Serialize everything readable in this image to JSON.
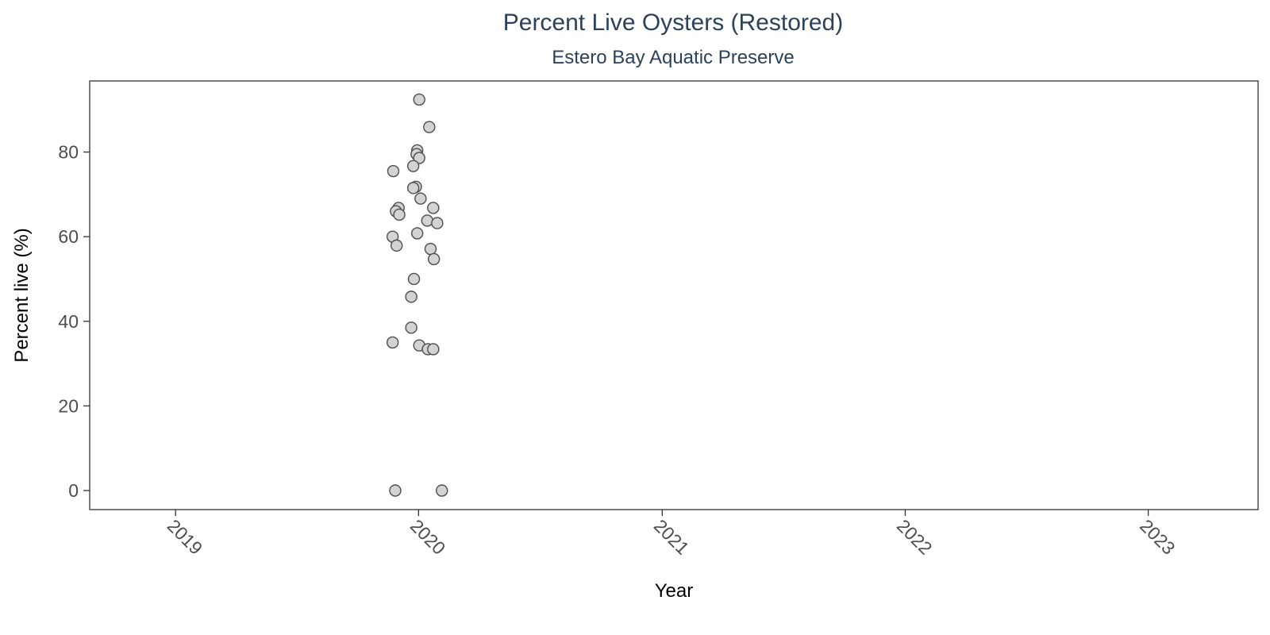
{
  "chart_data": {
    "type": "scatter",
    "title": "Percent Live Oysters (Restored)",
    "subtitle": "Estero Bay Aquatic Preserve",
    "xlabel": "Year",
    "ylabel": "Percent live (%)",
    "x_ticks": [
      "2019",
      "2020",
      "2021",
      "2022",
      "2023"
    ],
    "y_ticks": [
      0,
      20,
      40,
      60,
      80
    ],
    "xlim": [
      "2018-08-25",
      "2023-06-15"
    ],
    "ylim": [
      -4.5,
      96.8
    ],
    "grid": false,
    "colors": {
      "title": "#2c4259",
      "axis_text": "#4d4d4d",
      "axis_title": "#000000",
      "point_fill": "#d3d3d3",
      "point_stroke": "#4d4d4d",
      "panel_border": "#333333"
    },
    "series": [
      {
        "points": [
          {
            "x": "2020-01-02",
            "y": 92.4
          },
          {
            "x": "2020-01-17",
            "y": 85.9
          },
          {
            "x": "2019-12-30",
            "y": 80.4
          },
          {
            "x": "2019-12-29",
            "y": 79.5
          },
          {
            "x": "2020-01-02",
            "y": 78.6
          },
          {
            "x": "2019-11-24",
            "y": 75.5
          },
          {
            "x": "2019-12-24",
            "y": 76.7
          },
          {
            "x": "2019-12-28",
            "y": 71.8
          },
          {
            "x": "2019-12-24",
            "y": 71.5
          },
          {
            "x": "2020-01-04",
            "y": 69.0
          },
          {
            "x": "2019-12-02",
            "y": 66.8
          },
          {
            "x": "2019-11-28",
            "y": 66.0
          },
          {
            "x": "2019-12-03",
            "y": 65.2
          },
          {
            "x": "2020-01-23",
            "y": 66.8
          },
          {
            "x": "2020-01-14",
            "y": 63.8
          },
          {
            "x": "2020-01-29",
            "y": 63.2
          },
          {
            "x": "2019-11-23",
            "y": 60.0
          },
          {
            "x": "2019-12-30",
            "y": 60.8
          },
          {
            "x": "2019-11-29",
            "y": 57.9
          },
          {
            "x": "2020-01-19",
            "y": 57.1
          },
          {
            "x": "2020-01-24",
            "y": 54.7
          },
          {
            "x": "2019-12-25",
            "y": 50.0
          },
          {
            "x": "2019-12-21",
            "y": 45.8
          },
          {
            "x": "2019-12-21",
            "y": 38.5
          },
          {
            "x": "2019-11-23",
            "y": 35.0
          },
          {
            "x": "2020-01-02",
            "y": 34.3
          },
          {
            "x": "2020-01-15",
            "y": 33.4
          },
          {
            "x": "2020-01-23",
            "y": 33.4
          },
          {
            "x": "2019-11-27",
            "y": 0.0
          },
          {
            "x": "2020-02-05",
            "y": 0.0
          }
        ]
      }
    ]
  }
}
